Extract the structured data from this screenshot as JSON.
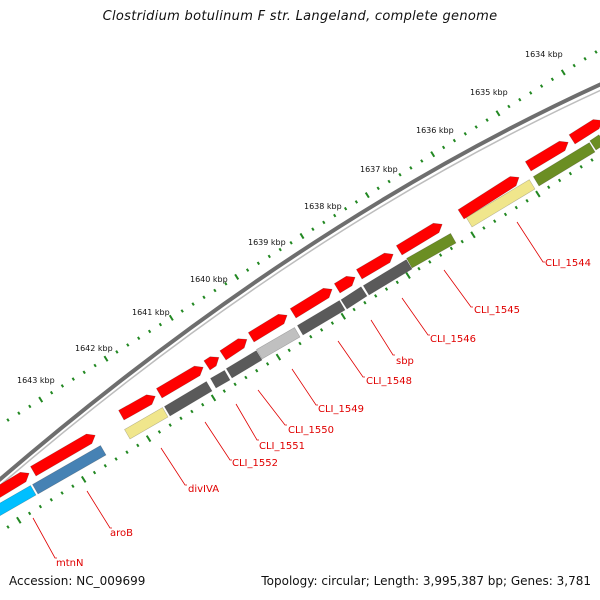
{
  "title": "Clostridium botulinum F str. Langeland, complete genome",
  "footer": {
    "accession": "Accession: NC_009699",
    "summary": "Topology: circular; Length: 3,995,387 bp; Genes: 3,781"
  },
  "kbp_ticks": [
    "1634 kbp",
    "1635 kbp",
    "1636 kbp",
    "1637 kbp",
    "1638 kbp",
    "1639 kbp",
    "1640 kbp",
    "1641 kbp",
    "1642 kbp",
    "1643 kbp"
  ],
  "gene_labels": [
    "CLI_1544",
    "CLI_1545",
    "CLI_1546",
    "sbp",
    "CLI_1548",
    "CLI_1549",
    "CLI_1550",
    "CLI_1551",
    "CLI_1552",
    "divIVA",
    "aroB",
    "mtnN"
  ],
  "colors": {
    "cds": "#ff0000",
    "label": "#e00000",
    "genome_line": "#6e6e6e",
    "tick_dots": "#228822",
    "categories": {
      "olive": "#6b8e23",
      "khaki": "#f0e68c",
      "dark_gray": "#5a5a5a",
      "light_gray": "#c0c0c0",
      "steel_blue": "#4682b4",
      "deep_sky_blue": "#00bfff"
    }
  }
}
